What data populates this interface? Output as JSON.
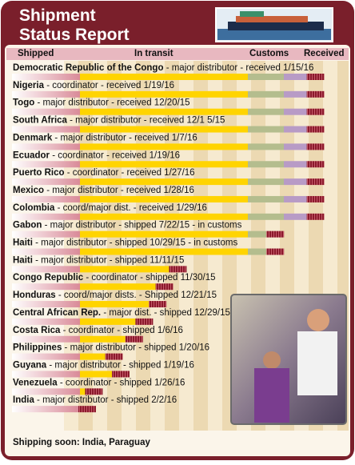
{
  "header": {
    "title": [
      "Shipment",
      "Status Report"
    ]
  },
  "columns": [
    "Shipped",
    "In transit",
    "Customs",
    "Received"
  ],
  "rows": [
    {
      "country": "Democratic Republic of the Congo",
      "detail": " - major distributor - received 1/15/16",
      "progress": 93
    },
    {
      "country": "Nigeria",
      "detail": " - coordinator - received 1/19/16",
      "progress": 93
    },
    {
      "country": "Togo",
      "detail": " - major distributor - received 12/20/15",
      "progress": 93
    },
    {
      "country": "South Africa",
      "detail": " - major distributor - received 12/1 5/15",
      "progress": 93
    },
    {
      "country": "Denmark",
      "detail": " - major distributor - received 1/7/16",
      "progress": 93
    },
    {
      "country": "Ecuador",
      "detail": " - coordinator - received 1/19/16",
      "progress": 93
    },
    {
      "country": "Puerto Rico",
      "detail": " - coordinator - received 1/27/16",
      "progress": 93
    },
    {
      "country": "Mexico",
      "detail": " - major distributor - received 1/28/16",
      "progress": 93
    },
    {
      "country": "Colombia",
      "detail": " - coord/major dist. - received 1/29/16",
      "progress": 93
    },
    {
      "country": "Gabon",
      "detail": " - major distributor - shipped 7/22/15 - in customs",
      "progress": 81
    },
    {
      "country": "Haiti",
      "detail": " - major distributor - shipped 10/29/15 - in customs",
      "progress": 81
    },
    {
      "country": "Haiti",
      "detail": " - major distributor - shipped 11/11/15",
      "progress": 52
    },
    {
      "country": "Congo Republic",
      "detail": " - coordinator - shipped 11/30/15",
      "progress": 48
    },
    {
      "country": "Honduras",
      "detail": " - coord/major dists. - Shipped 12/21/15",
      "progress": 46
    },
    {
      "country": "Central African Rep.",
      "detail": " - major dist. - shipped 12/29/15",
      "progress": 42
    },
    {
      "country": "Costa Rica",
      "detail": " - coordinator - shipped 1/6/16",
      "progress": 39
    },
    {
      "country": "Philippines",
      "detail": " - major distributor - shipped 1/20/16",
      "progress": 33
    },
    {
      "country": "Guyana",
      "detail": " - major distributor - shipped 1/19/16",
      "progress": 35
    },
    {
      "country": "Venezuela",
      "detail": " - coordinator - shipped 1/26/16",
      "progress": 27
    },
    {
      "country": "India",
      "detail": " - major distributor - shipped 2/2/16",
      "progress": 25
    }
  ],
  "footer": "Shipping soon: India, Paraguay"
}
